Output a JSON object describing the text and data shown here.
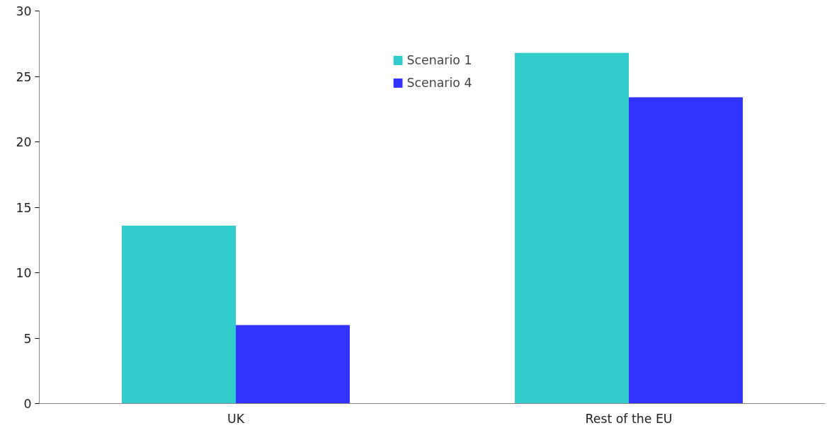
{
  "chart_data": {
    "type": "bar",
    "categories": [
      "UK",
      "Rest of the EU"
    ],
    "series": [
      {
        "name": "Scenario 1",
        "color": "#33cccc",
        "values": [
          13.6,
          26.8
        ]
      },
      {
        "name": "Scenario 4",
        "color": "#3333ff",
        "values": [
          6.0,
          23.4
        ]
      }
    ],
    "ylim": [
      0,
      30
    ],
    "yticks": [
      0,
      5,
      10,
      15,
      20,
      25,
      30
    ],
    "grid": false,
    "legend": "top"
  }
}
